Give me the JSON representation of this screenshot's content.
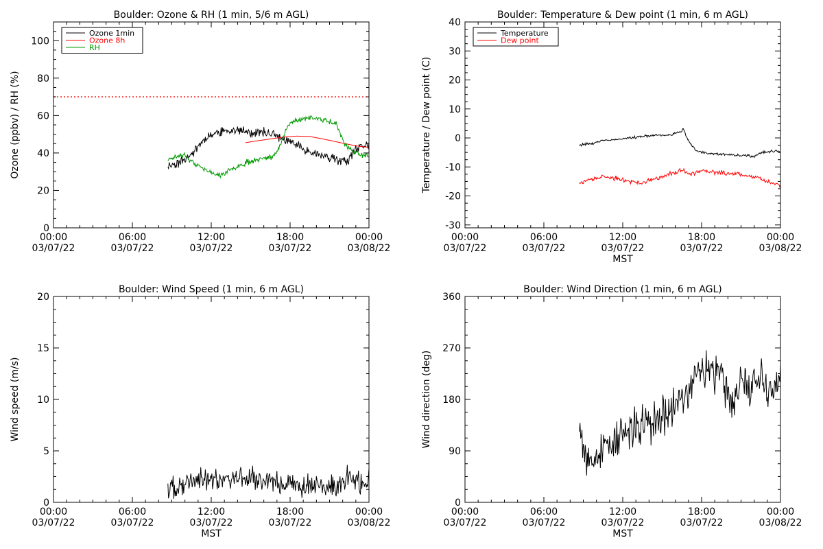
{
  "chart_data": [
    {
      "type": "line",
      "title": "Boulder: Ozone & RH (1 min, 5/6 m AGL)",
      "ylabel": "Ozone (ppbv) / RH (%)",
      "xlabel": "",
      "ylim": [
        0,
        110
      ],
      "yticks": [
        0,
        20,
        40,
        60,
        80,
        100
      ],
      "xlim": [
        "03/07/22 00:00",
        "03/08/22 00:00"
      ],
      "xticks": [
        {
          "time": "00:00",
          "date": "03/07/22"
        },
        {
          "time": "06:00",
          "date": "03/07/22"
        },
        {
          "time": "12:00",
          "date": "03/07/22"
        },
        {
          "time": "18:00",
          "date": "03/07/22"
        },
        {
          "time": "00:00",
          "date": "03/08/22"
        }
      ],
      "legend_position": "top-left",
      "grid": false,
      "reference_line": {
        "y": 70,
        "color": "#ff0000",
        "style": "dotted"
      },
      "series": [
        {
          "name": "Ozone 1min",
          "color": "#000000",
          "noise": 2.0,
          "seed": 11,
          "x": [
            8.7,
            9.5,
            10.3,
            11.0,
            11.8,
            12.5,
            13.3,
            14.0,
            14.7,
            15.4,
            16.0,
            16.7,
            17.3,
            17.8,
            18.3,
            18.8,
            19.5,
            20.3,
            21.0,
            21.8,
            22.3,
            22.8,
            23.3,
            24.0
          ],
          "values": [
            33,
            35,
            38,
            44,
            49,
            51,
            52,
            52,
            51,
            51,
            51,
            50,
            48,
            46,
            45,
            43,
            41,
            39,
            37,
            36,
            35,
            40,
            43,
            45
          ]
        },
        {
          "name": "Ozone 8h",
          "color": "#ff0000",
          "noise": 0.0,
          "seed": 0,
          "x": [
            14.6,
            15.5,
            16.5,
            17.5,
            18.5,
            19.5,
            20.5,
            21.5,
            22.5,
            23.3,
            24.0
          ],
          "values": [
            45.5,
            46.5,
            47.5,
            48.5,
            49,
            48.8,
            47.5,
            46,
            44.5,
            43.5,
            43
          ]
        },
        {
          "name": "RH",
          "color": "#009900",
          "noise": 1.2,
          "seed": 23,
          "x": [
            8.7,
            9.3,
            10.0,
            10.7,
            11.3,
            12.0,
            12.7,
            13.3,
            14.0,
            14.7,
            15.3,
            16.0,
            16.7,
            17.3,
            17.8,
            18.2,
            18.8,
            19.5,
            20.3,
            21.0,
            21.5,
            22.0,
            22.5,
            23.0,
            23.5,
            24.0
          ],
          "values": [
            36,
            38,
            39,
            34,
            32,
            29,
            28,
            30,
            33,
            35,
            36,
            37,
            38,
            45,
            54,
            57,
            58,
            59,
            58,
            57,
            56,
            47,
            42,
            40,
            39,
            38
          ]
        }
      ]
    },
    {
      "type": "line",
      "title": "Boulder: Temperature & Dew point (1 min, 6 m AGL)",
      "ylabel": "Temperature / Dew point (C)",
      "xlabel": "MST",
      "ylim": [
        -31,
        40
      ],
      "yticks": [
        -30,
        -20,
        -10,
        0,
        10,
        20,
        30,
        40
      ],
      "xlim": [
        "03/07/22 00:00",
        "03/08/22 00:00"
      ],
      "xticks": [
        {
          "time": "00:00",
          "date": "03/07/22"
        },
        {
          "time": "06:00",
          "date": "03/07/22"
        },
        {
          "time": "12:00",
          "date": "03/07/22"
        },
        {
          "time": "18:00",
          "date": "03/07/22"
        },
        {
          "time": "00:00",
          "date": "03/08/22"
        }
      ],
      "legend_position": "top-left",
      "grid": false,
      "series": [
        {
          "name": "Temperature",
          "color": "#000000",
          "noise": 0.35,
          "seed": 31,
          "x": [
            8.7,
            9.5,
            10.5,
            11.5,
            12.5,
            13.5,
            14.5,
            15.5,
            16.3,
            16.6,
            17.0,
            17.5,
            18.0,
            19.0,
            20.0,
            21.0,
            22.0,
            22.5,
            23.0,
            24.0
          ],
          "values": [
            -2.5,
            -2,
            -1,
            -0.5,
            0,
            0.5,
            1,
            1,
            2,
            3,
            -1,
            -4,
            -5,
            -5.5,
            -5.8,
            -6,
            -6.3,
            -5,
            -4.8,
            -4.5
          ]
        },
        {
          "name": "Dew point",
          "color": "#ff0000",
          "noise": 0.6,
          "seed": 37,
          "x": [
            8.7,
            9.5,
            10.5,
            11.5,
            12.5,
            13.5,
            14.5,
            15.5,
            16.5,
            17.0,
            18.0,
            19.0,
            20.0,
            21.0,
            22.0,
            23.0,
            24.0
          ],
          "values": [
            -15.5,
            -14.5,
            -13.5,
            -14,
            -15,
            -15.5,
            -14,
            -12.5,
            -11,
            -12.5,
            -11.5,
            -11.8,
            -12.2,
            -12.5,
            -13.5,
            -15,
            -16.5
          ]
        }
      ]
    },
    {
      "type": "line",
      "title": "Boulder: Wind Speed (1 min, 6 m AGL)",
      "ylabel": "Wind speed (m/s)",
      "xlabel": "MST",
      "ylim": [
        0,
        20
      ],
      "yticks": [
        0,
        5,
        10,
        15,
        20
      ],
      "xlim": [
        "03/07/22 00:00",
        "03/08/22 00:00"
      ],
      "xticks": [
        {
          "time": "00:00",
          "date": "03/07/22"
        },
        {
          "time": "06:00",
          "date": "03/07/22"
        },
        {
          "time": "12:00",
          "date": "03/07/22"
        },
        {
          "time": "18:00",
          "date": "03/07/22"
        },
        {
          "time": "00:00",
          "date": "03/08/22"
        }
      ],
      "grid": false,
      "series": [
        {
          "name": "",
          "color": "#000000",
          "noise": 0.9,
          "seed": 41,
          "x": [
            8.7,
            9.5,
            10.5,
            11.5,
            12.5,
            13.5,
            14.5,
            15.5,
            16.5,
            17.5,
            18.5,
            19.5,
            20.5,
            21.5,
            22.0,
            22.5,
            23.0,
            23.5,
            24.0
          ],
          "values": [
            1.2,
            1.5,
            2.0,
            2.2,
            2.3,
            2.4,
            2.3,
            2.2,
            2.0,
            1.8,
            1.6,
            1.8,
            1.5,
            1.3,
            2.0,
            2.5,
            2.2,
            2.0,
            2.0
          ]
        }
      ]
    },
    {
      "type": "line",
      "title": "Boulder: Wind Direction (1 min, 6 m AGL)",
      "ylabel": "Wind direction (deg)",
      "xlabel": "MST",
      "ylim": [
        0,
        360
      ],
      "yticks": [
        0,
        90,
        180,
        270,
        360
      ],
      "xlim": [
        "03/07/22 00:00",
        "03/08/22 00:00"
      ],
      "xticks": [
        {
          "time": "00:00",
          "date": "03/07/22"
        },
        {
          "time": "06:00",
          "date": "03/07/22"
        },
        {
          "time": "12:00",
          "date": "03/07/22"
        },
        {
          "time": "18:00",
          "date": "03/07/22"
        },
        {
          "time": "00:00",
          "date": "03/08/22"
        }
      ],
      "grid": false,
      "series": [
        {
          "name": "",
          "color": "#000000",
          "noise": 28,
          "seed": 53,
          "x": [
            8.7,
            9.3,
            10.0,
            10.7,
            11.3,
            12.0,
            12.7,
            13.3,
            14.0,
            14.7,
            15.3,
            16.0,
            16.7,
            17.3,
            18.0,
            18.7,
            19.3,
            20.0,
            20.5,
            21.0,
            21.5,
            22.0,
            22.5,
            23.0,
            23.5,
            24.0
          ],
          "values": [
            140,
            80,
            70,
            100,
            110,
            120,
            125,
            130,
            140,
            150,
            160,
            170,
            190,
            210,
            225,
            230,
            225,
            200,
            160,
            230,
            200,
            220,
            230,
            180,
            200,
            220
          ]
        }
      ]
    }
  ]
}
